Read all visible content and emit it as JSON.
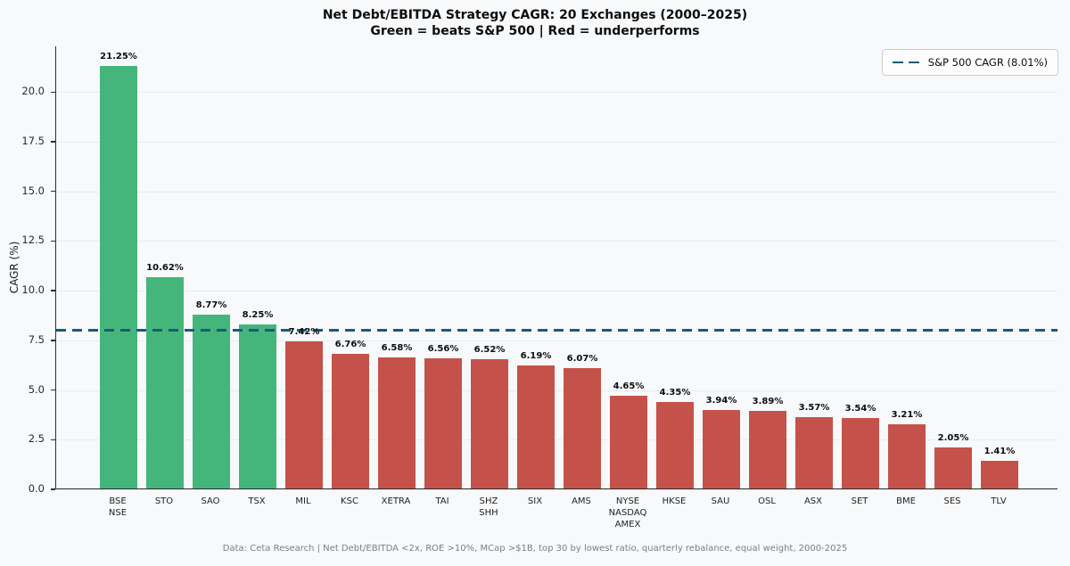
{
  "title": "Net Debt/EBITDA Strategy CAGR: 20 Exchanges (2000–2025)",
  "subtitle": "Green = beats S&P 500 | Red = underperforms",
  "footer": "Data: Ceta Research | Net Debt/EBITDA <2x, ROE >10%, MCap >$1B, top 30 by lowest ratio, quarterly rebalance, equal weight, 2000-2025",
  "legend": {
    "label": "S&P 500 CAGR (8.01%)"
  },
  "chart_data": {
    "type": "bar",
    "title": "Net Debt/EBITDA Strategy CAGR: 20 Exchanges (2000–2025)",
    "subtitle": "Green = beats S&P 500 | Red = underperforms",
    "ylabel": "CAGR (%)",
    "xlabel": "",
    "ylim": [
      0,
      22.3
    ],
    "yticks": [
      0.0,
      2.5,
      5.0,
      7.5,
      10.0,
      12.5,
      15.0,
      17.5,
      20.0
    ],
    "grid": "horizontal",
    "legend_position": "upper right",
    "categories": [
      [
        "BSE",
        "NSE"
      ],
      [
        "STO"
      ],
      [
        "SAO"
      ],
      [
        "TSX"
      ],
      [
        "MIL"
      ],
      [
        "KSC"
      ],
      [
        "XETRA"
      ],
      [
        "TAI"
      ],
      [
        "SHZ",
        "SHH"
      ],
      [
        "SIX"
      ],
      [
        "AMS"
      ],
      [
        "NYSE",
        "NASDAQ",
        "AMEX"
      ],
      [
        "HKSE"
      ],
      [
        "SAU"
      ],
      [
        "OSL"
      ],
      [
        "ASX"
      ],
      [
        "SET"
      ],
      [
        "BME"
      ],
      [
        "SES"
      ],
      [
        "TLV"
      ]
    ],
    "values": [
      21.25,
      10.62,
      8.77,
      8.25,
      7.42,
      6.76,
      6.58,
      6.56,
      6.52,
      6.19,
      6.07,
      4.65,
      4.35,
      3.94,
      3.89,
      3.57,
      3.54,
      3.21,
      2.05,
      1.41
    ],
    "benchmark": {
      "label": "S&P 500 CAGR (8.01%)",
      "value": 8.01,
      "color": "#1d5a78"
    },
    "colors": {
      "beats": "#45b67b",
      "underperforms": "#c5524a",
      "background": "#f7f9fb"
    }
  }
}
